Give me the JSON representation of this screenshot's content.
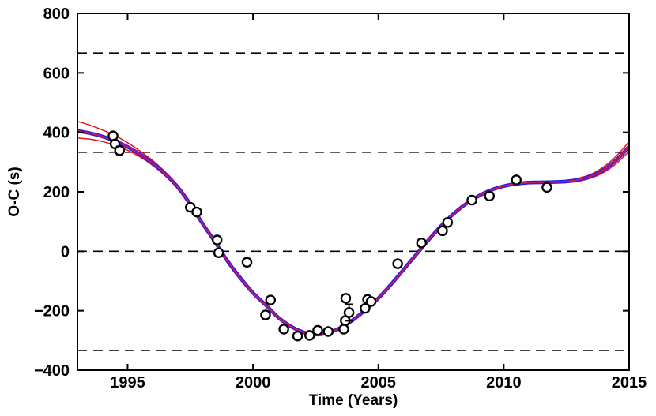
{
  "chart_data": {
    "type": "scatter",
    "title": "",
    "xlabel": "Time (Years)",
    "ylabel": "O-C (s)",
    "xlim": [
      1993,
      2015
    ],
    "ylim": [
      -400,
      800
    ],
    "xticks": [
      1995,
      2000,
      2005,
      2010,
      2015
    ],
    "xtick_labels": [
      "1995",
      "2000",
      "2005",
      "2010",
      "2015"
    ],
    "yticks": [
      800,
      600,
      400,
      200,
      0,
      -200,
      -400
    ],
    "ytick_labels": [
      "800",
      "600",
      "400",
      "200",
      "0",
      "−200",
      "−400"
    ],
    "dashed_hlines": [
      666.7,
      333.3,
      0,
      -333.3
    ],
    "grid": "off",
    "legend": "none",
    "points": [
      {
        "x": 1994.42,
        "y": 388,
        "err": 10
      },
      {
        "x": 1994.5,
        "y": 361,
        "err": 10
      },
      {
        "x": 1994.68,
        "y": 339,
        "err": 14
      },
      {
        "x": 1997.5,
        "y": 148,
        "err": 9
      },
      {
        "x": 1997.76,
        "y": 132,
        "err": 9
      },
      {
        "x": 1998.57,
        "y": 38,
        "err": 9
      },
      {
        "x": 1998.63,
        "y": -5,
        "err": 9
      },
      {
        "x": 1999.76,
        "y": -37,
        "err": 9
      },
      {
        "x": 2000.5,
        "y": -214,
        "err": 9
      },
      {
        "x": 2000.7,
        "y": -164,
        "err": 11
      },
      {
        "x": 2001.23,
        "y": -262,
        "err": 9
      },
      {
        "x": 2001.78,
        "y": -285,
        "err": 9
      },
      {
        "x": 2002.26,
        "y": -283,
        "err": 9
      },
      {
        "x": 2002.58,
        "y": -266,
        "err": 9
      },
      {
        "x": 2003.0,
        "y": -270,
        "err": 9
      },
      {
        "x": 2003.62,
        "y": -262,
        "err": 9
      },
      {
        "x": 2003.68,
        "y": -233,
        "err": 9
      },
      {
        "x": 2003.7,
        "y": -158,
        "err": 10
      },
      {
        "x": 2003.83,
        "y": -206,
        "err": 28
      },
      {
        "x": 2004.47,
        "y": -192,
        "err": 9
      },
      {
        "x": 2004.57,
        "y": -162,
        "err": 9
      },
      {
        "x": 2004.71,
        "y": -169,
        "err": 9
      },
      {
        "x": 2005.77,
        "y": -42,
        "err": 9
      },
      {
        "x": 2006.72,
        "y": 28,
        "err": 9
      },
      {
        "x": 2007.56,
        "y": 69,
        "err": 9
      },
      {
        "x": 2007.76,
        "y": 97,
        "err": 9
      },
      {
        "x": 2008.73,
        "y": 172,
        "err": 11
      },
      {
        "x": 2009.43,
        "y": 186,
        "err": 9
      },
      {
        "x": 2010.5,
        "y": 240,
        "err": 9
      },
      {
        "x": 2011.72,
        "y": 215,
        "err": 9
      }
    ],
    "fit_curve": {
      "x": [
        1993,
        1993.5,
        1994,
        1994.5,
        1995,
        1995.5,
        1996,
        1996.5,
        1997,
        1997.5,
        1998,
        1998.5,
        1999,
        1999.5,
        2000,
        2000.5,
        2001,
        2001.5,
        2002,
        2002.5,
        2003,
        2003.5,
        2004,
        2004.5,
        2005,
        2005.5,
        2006,
        2006.5,
        2007,
        2007.5,
        2008,
        2008.5,
        2009,
        2009.5,
        2010,
        2010.5,
        2011,
        2011.5,
        2012,
        2012.5,
        2013,
        2013.5,
        2014,
        2014.5,
        2015
      ],
      "y": [
        405,
        397,
        386,
        371,
        351,
        326,
        296,
        260,
        216,
        158,
        92,
        30,
        -35,
        -90,
        -140,
        -180,
        -222,
        -252,
        -272,
        -280,
        -274,
        -257,
        -230,
        -196,
        -158,
        -112,
        -62,
        -12,
        38,
        85,
        126,
        160,
        186,
        206,
        219,
        227,
        231,
        232,
        233,
        235,
        241,
        253,
        275,
        308,
        352
      ]
    },
    "band": {
      "upper_offset": [
        32,
        27,
        22,
        18,
        14,
        11,
        9,
        7,
        5,
        4,
        4,
        3,
        3,
        3,
        3,
        3,
        3,
        3,
        3,
        3,
        3,
        3,
        3,
        3,
        3,
        3,
        3,
        3,
        3,
        3,
        3,
        3,
        3,
        3,
        3,
        3,
        3,
        3,
        3,
        4,
        5,
        7,
        10,
        13,
        17
      ],
      "lower_offset": [
        24,
        20,
        17,
        14,
        11,
        9,
        7,
        6,
        5,
        4,
        3,
        3,
        3,
        3,
        3,
        3,
        3,
        3,
        3,
        3,
        3,
        3,
        3,
        3,
        3,
        3,
        3,
        3,
        3,
        3,
        3,
        3,
        3,
        3,
        3,
        3,
        3,
        3,
        3,
        4,
        5,
        6,
        9,
        12,
        15
      ]
    },
    "colors": {
      "fit_line": "#1f1fe8",
      "band_line": "#ee1111",
      "fit_overlay": "#c4156b",
      "marker": "#000000",
      "dashed": "#000000",
      "frame": "#000000",
      "background": "#ffffff"
    }
  }
}
